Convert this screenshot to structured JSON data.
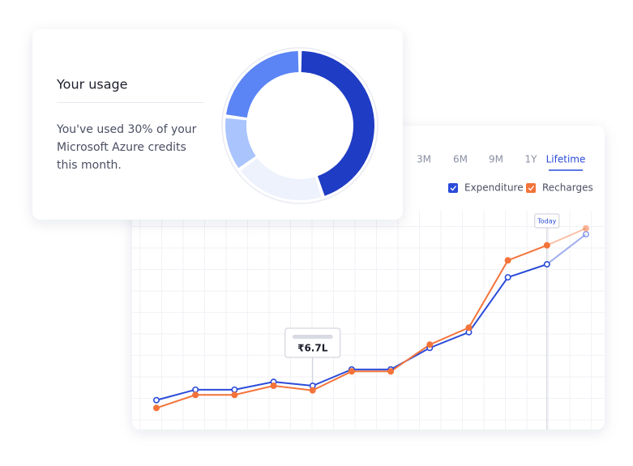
{
  "usage_card": {
    "title": "Your usage",
    "text_lines": [
      "You've used 30% of your",
      "Microsoft Azure credits",
      "this month."
    ]
  },
  "chart_card": {
    "tabs": [
      "3M",
      "6M",
      "9M",
      "1Y",
      "Lifetime"
    ],
    "active_tab": 4
  },
  "chart_data": [
    {
      "type": "pie",
      "donut": true,
      "values": [
        45,
        20,
        12,
        23
      ],
      "colors": [
        "#1f3cc4",
        "#edf2fd",
        "#aac4fd",
        "#5b84f5"
      ]
    },
    {
      "type": "line",
      "grid": true,
      "ylim": [
        0,
        33.5
      ],
      "categories": [
        null,
        null,
        null,
        null,
        null,
        null,
        null,
        null,
        null,
        null,
        null,
        null
      ],
      "series": [
        {
          "name": "Expenditure",
          "color": "#2a4bd8",
          "values": [
            4.5,
            6.1,
            6.1,
            7.3,
            6.7,
            9.2,
            9.2,
            12.5,
            14.9,
            23.3,
            25.3,
            29.9
          ],
          "value_labels": [
            null,
            null,
            null,
            null,
            "₹6.7L",
            null,
            null,
            null,
            null,
            null,
            null,
            null
          ]
        },
        {
          "name": "Recharges",
          "color": "#f4733a",
          "values": [
            3.3,
            5.3,
            5.3,
            6.7,
            6.0,
            8.9,
            8.9,
            13.0,
            15.6,
            25.9,
            28.2,
            30.8
          ]
        }
      ],
      "annotation": {
        "text": "Today",
        "index": 10
      }
    }
  ]
}
